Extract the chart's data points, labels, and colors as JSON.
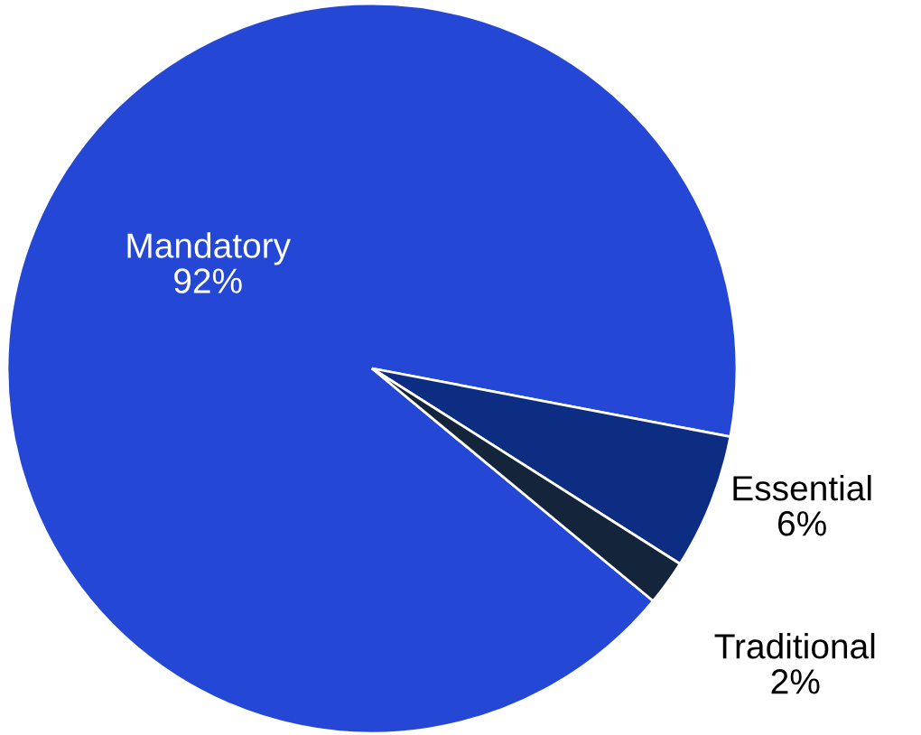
{
  "chart_data": {
    "type": "pie",
    "categories": [
      "Mandatory",
      "Essential",
      "Traditional"
    ],
    "values": [
      92,
      6,
      2
    ],
    "value_labels": [
      "92%",
      "6%",
      "2%"
    ],
    "colors": [
      "#2447d6",
      "#0c2d82",
      "#13243b"
    ],
    "legend": false
  }
}
